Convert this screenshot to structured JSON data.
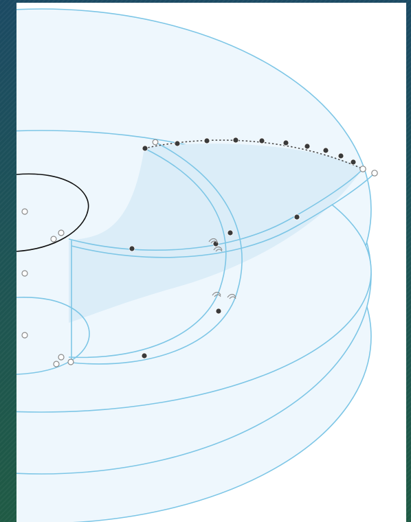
{
  "colors": {
    "backdrop_top": "#1b4a63",
    "backdrop_bottom": "#1f5a44",
    "canvas": "#ffffff",
    "surface_fill": "#eef7fd",
    "surface_fill_inner": "#dbedf8",
    "surface_edge": "#7dc6e6",
    "selected_edge": "#111111",
    "vertex": "#3a3a3a",
    "handle": "#8a8a8a"
  },
  "icons": {
    "vertex_point": "filled-dot",
    "handle_point": "hollow-circle",
    "constraint": "coincident-constraint-icon"
  }
}
